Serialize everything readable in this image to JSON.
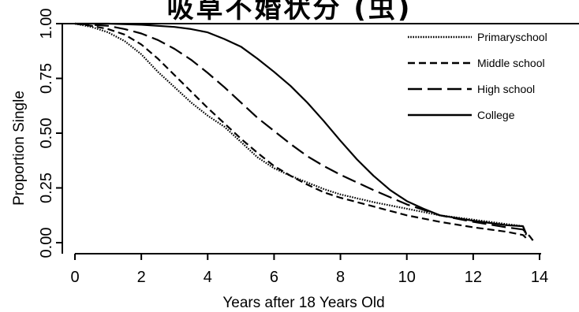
{
  "chart_data": {
    "type": "line",
    "title": "",
    "xlabel": "Years after 18 Years Old",
    "ylabel": "Proportion Single",
    "xlim": [
      0,
      14
    ],
    "ylim": [
      0,
      1
    ],
    "x_ticks": [
      "0",
      "2",
      "4",
      "6",
      "8",
      "10",
      "12",
      "14"
    ],
    "y_ticks": [
      "0.00",
      "0.25",
      "0.50",
      "0.75",
      "1.00"
    ],
    "grid": false,
    "legend_position": "top-right",
    "series": [
      {
        "name": "Primaryschool",
        "style": "dotted",
        "x": [
          0,
          0.5,
          1.0,
          1.5,
          2.0,
          2.5,
          3.0,
          3.5,
          4.0,
          4.5,
          5.0,
          5.5,
          6.0,
          6.5,
          7.0,
          7.5,
          8.0,
          9.0,
          10.0,
          11.0,
          12.0,
          13.0,
          13.5,
          13.6
        ],
        "values": [
          1.0,
          0.985,
          0.96,
          0.92,
          0.86,
          0.78,
          0.71,
          0.64,
          0.58,
          0.53,
          0.46,
          0.39,
          0.34,
          0.305,
          0.275,
          0.245,
          0.22,
          0.185,
          0.155,
          0.125,
          0.105,
          0.085,
          0.075,
          0.03
        ]
      },
      {
        "name": "Middle school",
        "style": "short-dash",
        "x": [
          0,
          0.5,
          1.0,
          1.5,
          2.0,
          2.5,
          3.0,
          3.5,
          4.0,
          4.5,
          5.0,
          5.5,
          6.0,
          6.5,
          7.0,
          7.5,
          8.0,
          9.0,
          10.0,
          11.0,
          12.0,
          13.0,
          13.5,
          13.6
        ],
        "values": [
          1.0,
          0.99,
          0.975,
          0.95,
          0.905,
          0.84,
          0.765,
          0.69,
          0.615,
          0.545,
          0.475,
          0.41,
          0.35,
          0.305,
          0.265,
          0.23,
          0.205,
          0.165,
          0.125,
          0.095,
          0.07,
          0.05,
          0.035,
          0.02
        ]
      },
      {
        "name": "High school",
        "style": "long-dash",
        "x": [
          0,
          0.5,
          1.0,
          1.5,
          2.0,
          2.5,
          3.0,
          3.5,
          4.0,
          4.5,
          5.0,
          5.5,
          6.0,
          6.5,
          7.0,
          7.5,
          8.0,
          8.5,
          9.0,
          10.0,
          11.0,
          12.0,
          13.0,
          13.5,
          13.7,
          13.8
        ],
        "values": [
          1.0,
          0.995,
          0.99,
          0.975,
          0.955,
          0.925,
          0.885,
          0.835,
          0.775,
          0.71,
          0.64,
          0.57,
          0.51,
          0.45,
          0.395,
          0.35,
          0.31,
          0.275,
          0.24,
          0.175,
          0.125,
          0.095,
          0.07,
          0.06,
          0.03,
          0.01
        ]
      },
      {
        "name": "College",
        "style": "solid",
        "x": [
          0,
          1.0,
          2.0,
          3.0,
          3.5,
          4.0,
          4.5,
          5.0,
          5.5,
          6.0,
          6.5,
          7.0,
          7.5,
          8.0,
          8.5,
          9.0,
          9.5,
          10.0,
          10.5,
          11.0,
          12.0,
          13.0,
          13.5,
          13.6
        ],
        "values": [
          1.0,
          1.0,
          0.995,
          0.985,
          0.975,
          0.96,
          0.93,
          0.895,
          0.84,
          0.78,
          0.715,
          0.64,
          0.555,
          0.465,
          0.38,
          0.305,
          0.24,
          0.19,
          0.155,
          0.125,
          0.1,
          0.08,
          0.075,
          0.04
        ]
      }
    ]
  }
}
